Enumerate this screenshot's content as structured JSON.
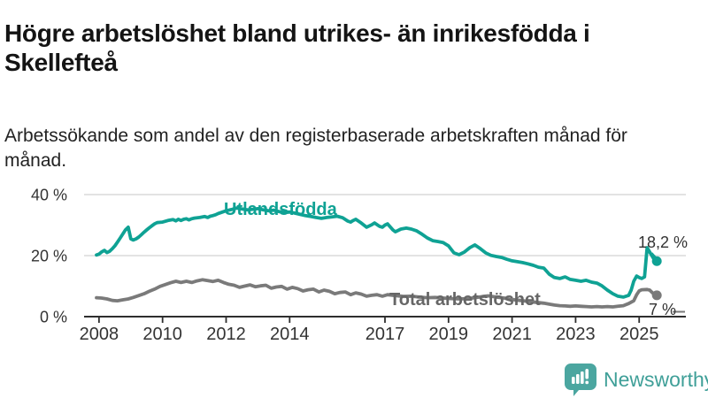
{
  "header": {
    "title": "Högre arbetslöshet bland utrikes- än inrikesfödda i Skellefteå",
    "subtitle": "Arbetssökande som andel av den registerbaserade arbetskraften månad för månad."
  },
  "footer": {
    "brand": "Newsworthy",
    "brand_text_color": "#3f9f98",
    "brand_icon": "bar-chart-speech-bubble-icon",
    "brand_icon_color": "#4ba6a0"
  },
  "chart_data": {
    "type": "line",
    "title": "Högre arbetslöshet bland utrikes- än inrikesfödda i Skellefteå",
    "subtitle": "Arbetssökande som andel av den registerbaserade arbetskraften månad för månad.",
    "unit": "%",
    "grid": "horizontal",
    "legend_position": "inline-labels",
    "xlim": [
      2007.53,
      2026.47
    ],
    "ylim": [
      0,
      42
    ],
    "x_ticks": [
      "2008",
      "2010",
      "2012",
      "2014",
      "2017",
      "2019",
      "2021",
      "2023",
      "2025"
    ],
    "x_tick_years": [
      2008,
      2010,
      2012,
      2014,
      2017,
      2019,
      2021,
      2023,
      2025
    ],
    "y_ticks": [
      {
        "value": 0,
        "label": "0 %"
      },
      {
        "value": 20,
        "label": "20 %"
      },
      {
        "value": 40,
        "label": "40 %"
      }
    ],
    "axis_color": "#2e2e2e",
    "grid_color": "#dadada",
    "tick_label_color": "#333333",
    "series": [
      {
        "id": "utlandsfodda",
        "name": "Utlandsfödda",
        "color": "#0fa294",
        "label_color": "#0fa294",
        "end_label": "18,2 %",
        "end_value": 18.2,
        "points": [
          [
            2007.92,
            20.2
          ],
          [
            2008.0,
            20.5
          ],
          [
            2008.08,
            21.2
          ],
          [
            2008.17,
            21.7
          ],
          [
            2008.25,
            21.0
          ],
          [
            2008.33,
            21.4
          ],
          [
            2008.42,
            22.3
          ],
          [
            2008.5,
            23.2
          ],
          [
            2008.58,
            24.4
          ],
          [
            2008.67,
            25.8
          ],
          [
            2008.75,
            27.1
          ],
          [
            2008.83,
            28.4
          ],
          [
            2008.92,
            29.3
          ],
          [
            2009.0,
            25.5
          ],
          [
            2009.08,
            25.1
          ],
          [
            2009.17,
            25.5
          ],
          [
            2009.25,
            26.1
          ],
          [
            2009.33,
            26.8
          ],
          [
            2009.42,
            27.7
          ],
          [
            2009.5,
            28.4
          ],
          [
            2009.58,
            29.1
          ],
          [
            2009.67,
            29.8
          ],
          [
            2009.75,
            30.4
          ],
          [
            2009.83,
            30.8
          ],
          [
            2009.92,
            30.9
          ],
          [
            2010.0,
            31.0
          ],
          [
            2010.17,
            31.5
          ],
          [
            2010.33,
            31.8
          ],
          [
            2010.42,
            31.4
          ],
          [
            2010.5,
            31.9
          ],
          [
            2010.58,
            31.5
          ],
          [
            2010.67,
            31.9
          ],
          [
            2010.75,
            32.1
          ],
          [
            2010.83,
            31.7
          ],
          [
            2010.92,
            32.1
          ],
          [
            2011.0,
            32.3
          ],
          [
            2011.17,
            32.5
          ],
          [
            2011.33,
            32.8
          ],
          [
            2011.42,
            32.5
          ],
          [
            2011.5,
            32.9
          ],
          [
            2011.58,
            33.1
          ],
          [
            2011.67,
            33.4
          ],
          [
            2011.75,
            33.8
          ],
          [
            2011.83,
            34.1
          ],
          [
            2011.92,
            34.4
          ],
          [
            2012.0,
            34.7
          ],
          [
            2012.17,
            35.1
          ],
          [
            2012.33,
            35.6
          ],
          [
            2012.5,
            35.3
          ],
          [
            2012.67,
            35.0
          ],
          [
            2012.83,
            35.2
          ],
          [
            2013.0,
            35.4
          ],
          [
            2013.17,
            35.0
          ],
          [
            2013.33,
            34.7
          ],
          [
            2013.5,
            34.9
          ],
          [
            2013.67,
            34.4
          ],
          [
            2013.83,
            34.1
          ],
          [
            2014.0,
            34.3
          ],
          [
            2014.17,
            33.9
          ],
          [
            2014.33,
            33.5
          ],
          [
            2014.5,
            33.1
          ],
          [
            2014.67,
            32.8
          ],
          [
            2014.83,
            32.5
          ],
          [
            2015.0,
            32.2
          ],
          [
            2015.17,
            32.5
          ],
          [
            2015.33,
            32.7
          ],
          [
            2015.5,
            32.9
          ],
          [
            2015.67,
            32.4
          ],
          [
            2015.83,
            31.3
          ],
          [
            2015.92,
            31.0
          ],
          [
            2016.0,
            31.5
          ],
          [
            2016.08,
            31.9
          ],
          [
            2016.25,
            30.7
          ],
          [
            2016.42,
            29.3
          ],
          [
            2016.58,
            30.1
          ],
          [
            2016.67,
            30.7
          ],
          [
            2016.83,
            29.6
          ],
          [
            2016.92,
            29.3
          ],
          [
            2017.0,
            30.0
          ],
          [
            2017.08,
            30.4
          ],
          [
            2017.25,
            28.4
          ],
          [
            2017.33,
            27.8
          ],
          [
            2017.5,
            28.7
          ],
          [
            2017.67,
            29.0
          ],
          [
            2017.83,
            28.7
          ],
          [
            2018.0,
            28.1
          ],
          [
            2018.17,
            27.0
          ],
          [
            2018.33,
            25.8
          ],
          [
            2018.5,
            24.9
          ],
          [
            2018.67,
            24.6
          ],
          [
            2018.83,
            24.3
          ],
          [
            2019.0,
            23.2
          ],
          [
            2019.17,
            20.9
          ],
          [
            2019.33,
            20.3
          ],
          [
            2019.5,
            21.2
          ],
          [
            2019.67,
            22.6
          ],
          [
            2019.83,
            23.5
          ],
          [
            2020.0,
            22.3
          ],
          [
            2020.17,
            20.9
          ],
          [
            2020.33,
            20.1
          ],
          [
            2020.5,
            19.7
          ],
          [
            2020.67,
            19.4
          ],
          [
            2020.83,
            18.8
          ],
          [
            2021.0,
            18.3
          ],
          [
            2021.17,
            18.0
          ],
          [
            2021.33,
            17.7
          ],
          [
            2021.5,
            17.3
          ],
          [
            2021.67,
            16.8
          ],
          [
            2021.83,
            16.2
          ],
          [
            2022.0,
            15.9
          ],
          [
            2022.17,
            13.9
          ],
          [
            2022.33,
            12.8
          ],
          [
            2022.5,
            12.5
          ],
          [
            2022.67,
            13.0
          ],
          [
            2022.83,
            12.2
          ],
          [
            2023.0,
            11.9
          ],
          [
            2023.17,
            11.6
          ],
          [
            2023.33,
            11.9
          ],
          [
            2023.5,
            11.3
          ],
          [
            2023.67,
            11.0
          ],
          [
            2023.83,
            10.1
          ],
          [
            2024.0,
            8.7
          ],
          [
            2024.17,
            7.5
          ],
          [
            2024.33,
            6.7
          ],
          [
            2024.5,
            6.4
          ],
          [
            2024.67,
            7.0
          ],
          [
            2024.75,
            8.7
          ],
          [
            2024.83,
            11.6
          ],
          [
            2024.92,
            13.3
          ],
          [
            2025.0,
            12.8
          ],
          [
            2025.08,
            12.5
          ],
          [
            2025.17,
            13.0
          ],
          [
            2025.25,
            22.6
          ],
          [
            2025.5,
            18.2
          ]
        ]
      },
      {
        "id": "total",
        "name": "Total arbetslöshet",
        "color": "#7a7a7a",
        "label_color": "#666666",
        "end_label": "7 %",
        "end_value": 7,
        "points": [
          [
            2007.92,
            6.2
          ],
          [
            2008.08,
            6.1
          ],
          [
            2008.25,
            5.8
          ],
          [
            2008.42,
            5.3
          ],
          [
            2008.58,
            5.2
          ],
          [
            2008.75,
            5.5
          ],
          [
            2008.92,
            5.8
          ],
          [
            2009.08,
            6.3
          ],
          [
            2009.25,
            6.9
          ],
          [
            2009.42,
            7.5
          ],
          [
            2009.58,
            8.3
          ],
          [
            2009.75,
            9.0
          ],
          [
            2009.92,
            9.9
          ],
          [
            2010.08,
            10.5
          ],
          [
            2010.25,
            11.1
          ],
          [
            2010.42,
            11.6
          ],
          [
            2010.58,
            11.2
          ],
          [
            2010.75,
            11.6
          ],
          [
            2010.92,
            11.2
          ],
          [
            2011.08,
            11.7
          ],
          [
            2011.25,
            12.1
          ],
          [
            2011.42,
            11.8
          ],
          [
            2011.58,
            11.5
          ],
          [
            2011.75,
            11.9
          ],
          [
            2011.92,
            11.2
          ],
          [
            2012.08,
            10.6
          ],
          [
            2012.25,
            10.3
          ],
          [
            2012.42,
            9.6
          ],
          [
            2012.58,
            10.0
          ],
          [
            2012.75,
            10.4
          ],
          [
            2012.92,
            9.8
          ],
          [
            2013.08,
            10.1
          ],
          [
            2013.25,
            10.3
          ],
          [
            2013.42,
            9.3
          ],
          [
            2013.58,
            9.7
          ],
          [
            2013.75,
            9.9
          ],
          [
            2013.92,
            9.0
          ],
          [
            2014.08,
            9.6
          ],
          [
            2014.25,
            9.2
          ],
          [
            2014.42,
            8.4
          ],
          [
            2014.58,
            8.8
          ],
          [
            2014.75,
            9.0
          ],
          [
            2014.92,
            8.1
          ],
          [
            2015.08,
            8.7
          ],
          [
            2015.25,
            8.3
          ],
          [
            2015.42,
            7.5
          ],
          [
            2015.58,
            7.9
          ],
          [
            2015.75,
            8.1
          ],
          [
            2015.92,
            7.2
          ],
          [
            2016.08,
            7.8
          ],
          [
            2016.25,
            7.4
          ],
          [
            2016.42,
            6.7
          ],
          [
            2016.58,
            7.0
          ],
          [
            2016.75,
            7.2
          ],
          [
            2016.92,
            6.7
          ],
          [
            2017.08,
            7.2
          ],
          [
            2017.33,
            6.9
          ],
          [
            2017.58,
            6.6
          ],
          [
            2017.83,
            6.7
          ],
          [
            2018.08,
            6.4
          ],
          [
            2018.33,
            6.2
          ],
          [
            2018.58,
            6.3
          ],
          [
            2018.83,
            6.1
          ],
          [
            2019.08,
            5.9
          ],
          [
            2019.33,
            5.8
          ],
          [
            2019.58,
            5.9
          ],
          [
            2019.83,
            6.2
          ],
          [
            2020.08,
            6.6
          ],
          [
            2020.25,
            6.8
          ],
          [
            2020.5,
            6.4
          ],
          [
            2020.75,
            6.1
          ],
          [
            2021.0,
            5.6
          ],
          [
            2021.25,
            5.3
          ],
          [
            2021.5,
            5.0
          ],
          [
            2021.75,
            4.7
          ],
          [
            2022.0,
            4.4
          ],
          [
            2022.17,
            4.1
          ],
          [
            2022.33,
            3.8
          ],
          [
            2022.5,
            3.6
          ],
          [
            2022.67,
            3.5
          ],
          [
            2022.83,
            3.4
          ],
          [
            2023.0,
            3.5
          ],
          [
            2023.17,
            3.4
          ],
          [
            2023.33,
            3.3
          ],
          [
            2023.5,
            3.2
          ],
          [
            2023.67,
            3.3
          ],
          [
            2023.83,
            3.2
          ],
          [
            2024.0,
            3.3
          ],
          [
            2024.17,
            3.2
          ],
          [
            2024.33,
            3.4
          ],
          [
            2024.5,
            3.6
          ],
          [
            2024.67,
            4.3
          ],
          [
            2024.83,
            5.2
          ],
          [
            2024.92,
            7.2
          ],
          [
            2025.0,
            8.4
          ],
          [
            2025.08,
            8.8
          ],
          [
            2025.25,
            8.9
          ],
          [
            2025.33,
            8.7
          ],
          [
            2025.5,
            7.0
          ]
        ]
      }
    ]
  }
}
